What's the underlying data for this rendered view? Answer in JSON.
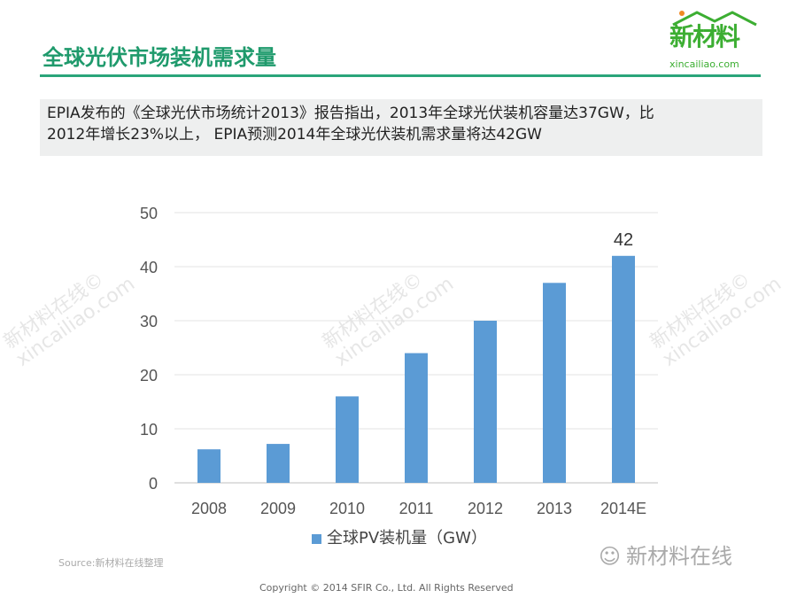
{
  "header": {
    "title": "全球光伏市场装机需求量",
    "logo_cn": "新材料",
    "logo_en": "xincailiao.com"
  },
  "summary": {
    "line1": "EPIA发布的《全球光伏市场统计2013》报告指出，2013年全球光伏装机容量达37GW，比",
    "line2": "2012年增长23%以上， EPIA预测2014年全球光伏装机需求量将达42GW"
  },
  "watermark": {
    "cn": "新材料在线©",
    "en": "xincailiao.com"
  },
  "chart_data": {
    "type": "bar",
    "categories": [
      "2008",
      "2009",
      "2010",
      "2011",
      "2012",
      "2013",
      "2014E"
    ],
    "series": [
      {
        "name": "全球PV装机量（GW）",
        "values": [
          6.2,
          7.2,
          16,
          24,
          30,
          37,
          42
        ],
        "color": "#5b9bd5"
      }
    ],
    "data_labels": {
      "2014E": "42"
    },
    "ylim": [
      0,
      50
    ],
    "yticks": [
      "0",
      "10",
      "20",
      "30",
      "40",
      "50"
    ],
    "grid": true,
    "legend": "bottom"
  },
  "footer": {
    "source": "Source:新材料在线整理",
    "copyright": "Copyright © 2014 SFIR Co., Ltd. All Rights Reserved",
    "wechat": "新材料在线",
    "wechat_icon": "wechat-icon"
  }
}
